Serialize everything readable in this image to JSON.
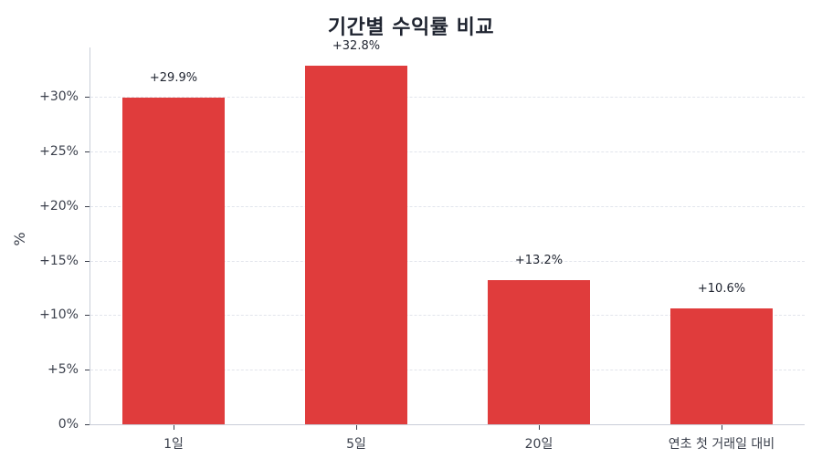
{
  "chart_data": {
    "type": "bar",
    "title": "기간별 수익률 비교",
    "xlabel": "",
    "ylabel": "%",
    "categories": [
      "1일",
      "5일",
      "20일",
      "연초 첫 거래일 대비"
    ],
    "values": [
      29.9,
      32.8,
      13.2,
      10.6
    ],
    "value_labels": [
      "+29.9%",
      "+32.8%",
      "+13.2%",
      "+10.6%"
    ],
    "ylim": [
      0,
      34.5
    ],
    "yticks": [
      0,
      5,
      10,
      15,
      20,
      25,
      30
    ],
    "ytick_labels": [
      "0%",
      "+5%",
      "+10%",
      "+15%",
      "+20%",
      "+25%",
      "+30%"
    ],
    "grid": "horizontal dashed",
    "legend": null,
    "bar_color": "#e03c3c"
  }
}
